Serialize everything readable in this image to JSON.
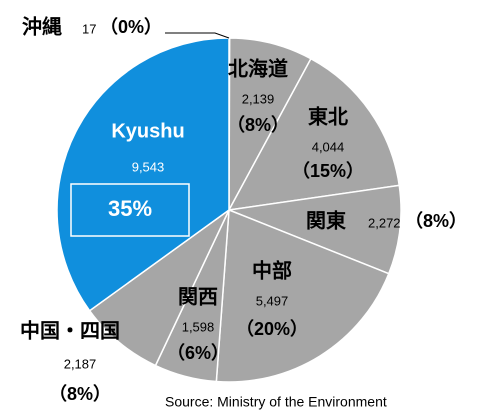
{
  "chart_data": {
    "type": "pie",
    "categories": [
      "沖縄",
      "北海道",
      "東北",
      "関東",
      "中部",
      "関西",
      "中国・四国",
      "Kyushu"
    ],
    "values": [
      17,
      2139,
      4044,
      2272,
      5497,
      1598,
      2187,
      9543
    ],
    "value_labels": [
      "17",
      "2,139",
      "4,044",
      "2,272",
      "5,497",
      "1,598",
      "2,187",
      "9,543"
    ],
    "shares": [
      0,
      8,
      15,
      8,
      20,
      6,
      8,
      35
    ],
    "share_labels": [
      "（0%）",
      "（8%）",
      "（15%）",
      "（8%）",
      "（20%）",
      "（6%）",
      "（8%）",
      "35%"
    ],
    "colors": [
      "#a6a6a6",
      "#a6a6a6",
      "#a6a6a6",
      "#a6a6a6",
      "#a6a6a6",
      "#a6a6a6",
      "#a6a6a6",
      "#108fdd"
    ],
    "source": "Source: Ministry of the Environment"
  }
}
